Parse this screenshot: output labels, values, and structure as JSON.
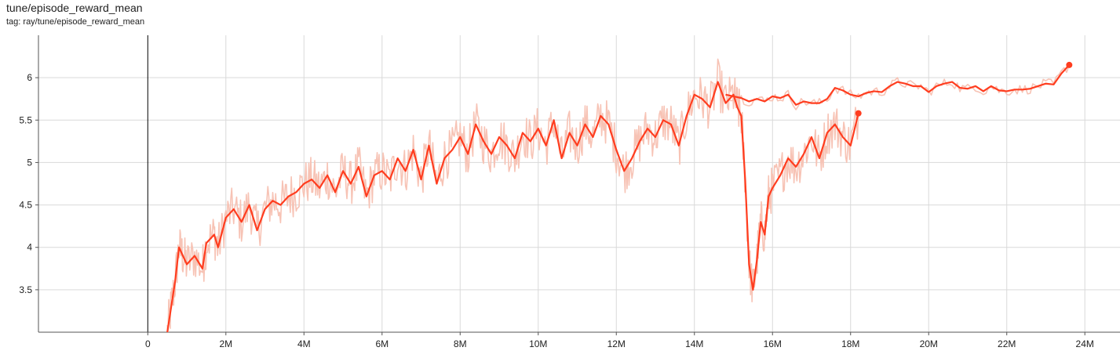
{
  "card": {
    "title": "tune/episode_reward_mean",
    "subtitle": "tag: ray/tune/episode_reward_mean"
  },
  "colors": {
    "series": "#ff3d1f",
    "raw": "#f7c3b5",
    "grid": "#d9d9d9",
    "axis": "#555555",
    "zero_line": "#000000"
  },
  "chart_data": {
    "type": "line",
    "title": "tune/episode_reward_mean",
    "xlabel": "",
    "ylabel": "",
    "xlim": [
      -2800000,
      24900000
    ],
    "ylim": [
      3.0,
      6.5
    ],
    "x_ticks": [
      {
        "value": 0,
        "label": "0"
      },
      {
        "value": 2000000,
        "label": "2M"
      },
      {
        "value": 4000000,
        "label": "4M"
      },
      {
        "value": 6000000,
        "label": "6M"
      },
      {
        "value": 8000000,
        "label": "8M"
      },
      {
        "value": 10000000,
        "label": "10M"
      },
      {
        "value": 12000000,
        "label": "12M"
      },
      {
        "value": 14000000,
        "label": "14M"
      },
      {
        "value": 16000000,
        "label": "16M"
      },
      {
        "value": 18000000,
        "label": "18M"
      },
      {
        "value": 20000000,
        "label": "20M"
      },
      {
        "value": 22000000,
        "label": "22M"
      },
      {
        "value": 24000000,
        "label": "24M"
      }
    ],
    "y_ticks": [
      {
        "value": 3.5,
        "label": "3.5"
      },
      {
        "value": 4,
        "label": "4"
      },
      {
        "value": 4.5,
        "label": "4.5"
      },
      {
        "value": 5,
        "label": "5"
      },
      {
        "value": 5.5,
        "label": "5.5"
      },
      {
        "value": 6,
        "label": "6"
      }
    ],
    "grid": true,
    "series": [
      {
        "smoothed": true,
        "x": [
          500000,
          600000,
          700000,
          800000,
          900000,
          1000000,
          1200000,
          1400000,
          1500000,
          1700000,
          1800000,
          2000000,
          2200000,
          2400000,
          2600000,
          2800000,
          3000000,
          3200000,
          3400000,
          3600000,
          3800000,
          4000000,
          4200000,
          4400000,
          4600000,
          4800000,
          5000000,
          5200000,
          5400000,
          5600000,
          5800000,
          6000000,
          6200000,
          6400000,
          6600000,
          6800000,
          7000000,
          7200000,
          7400000,
          7600000,
          7800000,
          8000000,
          8200000,
          8400000,
          8600000,
          8800000,
          9000000,
          9200000,
          9400000,
          9600000,
          9800000,
          10000000,
          10200000,
          10400000,
          10600000,
          10800000,
          11000000,
          11200000,
          11400000,
          11600000,
          11800000,
          12000000,
          12200000,
          12400000,
          12600000,
          12800000,
          13000000,
          13200000,
          13400000,
          13600000,
          13800000,
          14000000,
          14200000,
          14400000,
          14600000,
          14800000,
          15000000,
          15100000,
          15200000,
          15300000,
          15400000,
          15500000,
          15600000,
          15700000,
          15800000,
          15900000,
          16000000,
          16200000,
          16400000,
          16600000,
          16800000,
          17000000,
          17200000,
          17400000,
          17600000,
          17800000,
          18000000,
          18200000
        ],
        "y": [
          3.0,
          3.3,
          3.6,
          4.0,
          3.9,
          3.8,
          3.9,
          3.75,
          4.05,
          4.15,
          4.0,
          4.35,
          4.45,
          4.3,
          4.5,
          4.2,
          4.45,
          4.55,
          4.5,
          4.6,
          4.65,
          4.75,
          4.8,
          4.7,
          4.85,
          4.65,
          4.9,
          4.75,
          4.95,
          4.6,
          4.85,
          4.9,
          4.8,
          5.05,
          4.9,
          5.15,
          4.8,
          5.2,
          4.75,
          5.05,
          5.15,
          5.3,
          5.1,
          5.45,
          5.25,
          5.1,
          5.3,
          5.2,
          5.05,
          5.35,
          5.25,
          5.4,
          5.2,
          5.5,
          5.05,
          5.35,
          5.2,
          5.45,
          5.3,
          5.55,
          5.45,
          5.15,
          4.9,
          5.05,
          5.25,
          5.4,
          5.3,
          5.5,
          5.45,
          5.2,
          5.55,
          5.8,
          5.75,
          5.65,
          5.95,
          5.7,
          5.8,
          5.65,
          5.55,
          4.8,
          3.8,
          3.5,
          3.85,
          4.3,
          4.15,
          4.6,
          4.7,
          4.85,
          5.05,
          4.95,
          5.1,
          5.3,
          5.05,
          5.35,
          5.45,
          5.3,
          5.2,
          5.58
        ]
      },
      {
        "smoothed": true,
        "x": [
          14800000,
          15000000,
          15200000,
          15400000,
          15600000,
          15800000,
          16000000,
          16200000,
          16400000,
          16600000,
          16800000,
          17000000,
          17200000,
          17400000,
          17600000,
          17800000,
          18000000,
          18200000,
          18400000,
          18600000,
          18800000,
          19000000,
          19200000,
          19400000,
          19600000,
          19800000,
          20000000,
          20200000,
          20400000,
          20600000,
          20800000,
          21000000,
          21200000,
          21400000,
          21600000,
          21800000,
          22000000,
          22200000,
          22400000,
          22600000,
          22800000,
          23000000,
          23200000,
          23400000,
          23600000
        ],
        "y": [
          5.8,
          5.78,
          5.76,
          5.72,
          5.75,
          5.72,
          5.78,
          5.76,
          5.8,
          5.68,
          5.72,
          5.7,
          5.7,
          5.75,
          5.88,
          5.85,
          5.8,
          5.78,
          5.82,
          5.84,
          5.83,
          5.9,
          5.95,
          5.93,
          5.9,
          5.9,
          5.83,
          5.9,
          5.93,
          5.95,
          5.88,
          5.87,
          5.9,
          5.84,
          5.9,
          5.85,
          5.84,
          5.86,
          5.86,
          5.87,
          5.9,
          5.93,
          5.92,
          6.05,
          6.15
        ]
      }
    ],
    "end_markers": [
      {
        "x": 18200000,
        "y": 5.58
      },
      {
        "x": 23600000,
        "y": 6.15
      }
    ]
  }
}
